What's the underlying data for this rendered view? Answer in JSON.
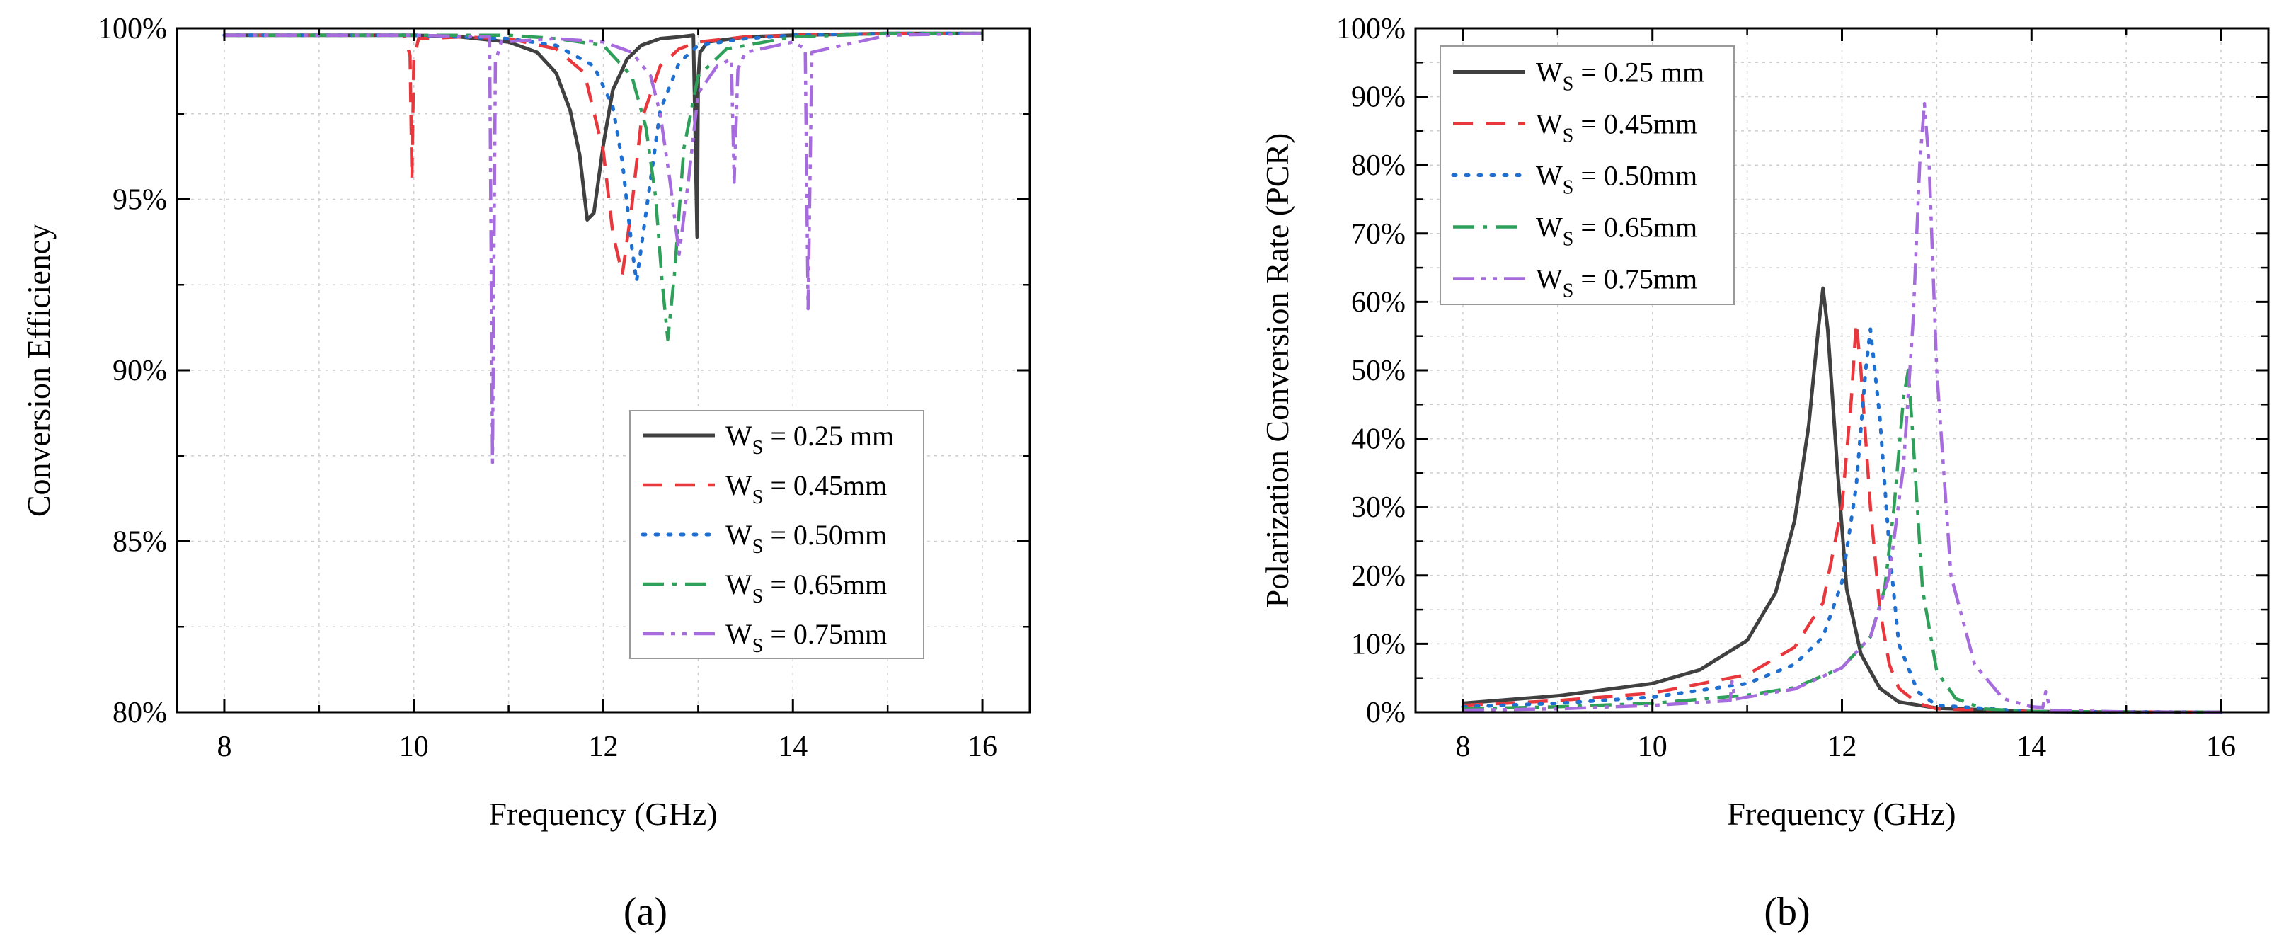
{
  "chart_data": [
    {
      "panel": "(a)",
      "type": "line",
      "xlabel": "Frequency (GHz)",
      "ylabel": "Conversion Efficiency",
      "xlim": [
        7.5,
        16.5
      ],
      "ylim": [
        80,
        100
      ],
      "xticks": [
        8,
        10,
        12,
        14,
        16
      ],
      "yticks": [
        80,
        85,
        90,
        95,
        100
      ],
      "ytick_labels": [
        "80%",
        "85%",
        "90%",
        "95%",
        "100%"
      ],
      "grid": true,
      "legend_position": "lower-right",
      "series": [
        {
          "name": "0.25 mm",
          "color": "#404040",
          "dash": "solid",
          "x": [
            8,
            9,
            10,
            10.5,
            11,
            11.3,
            11.5,
            11.65,
            11.75,
            11.83,
            11.9,
            12.0,
            12.1,
            12.25,
            12.4,
            12.6,
            12.8,
            12.95,
            12.99,
            13.0,
            13.02,
            13.1,
            13.5,
            14,
            15,
            16
          ],
          "y": [
            99.8,
            99.8,
            99.8,
            99.75,
            99.6,
            99.3,
            98.7,
            97.6,
            96.3,
            94.4,
            94.6,
            96.6,
            98.2,
            99.1,
            99.5,
            99.7,
            99.75,
            99.8,
            93.9,
            98.5,
            99.3,
            99.6,
            99.75,
            99.8,
            99.85,
            99.85
          ]
        },
        {
          "name": "0.45mm",
          "color": "#e8383d",
          "dash": "28,18",
          "x": [
            8,
            9,
            9.9,
            9.96,
            9.98,
            10.0,
            10.05,
            10.5,
            11,
            11.5,
            11.8,
            12.0,
            12.1,
            12.2,
            12.3,
            12.4,
            12.6,
            12.8,
            13,
            13.5,
            14,
            15,
            16
          ],
          "y": [
            99.8,
            99.8,
            99.8,
            99.2,
            95.6,
            99.1,
            99.7,
            99.75,
            99.7,
            99.4,
            98.7,
            96.4,
            94.0,
            92.8,
            94.8,
            97.3,
            98.9,
            99.4,
            99.6,
            99.75,
            99.8,
            99.85,
            99.85
          ]
        },
        {
          "name": "0.50mm",
          "color": "#1f6fd1",
          "dash": "4,14",
          "x": [
            8,
            9,
            10,
            11,
            11.5,
            11.9,
            12.1,
            12.2,
            12.3,
            12.35,
            12.45,
            12.6,
            12.8,
            13,
            13.5,
            14,
            15,
            16
          ],
          "y": [
            99.8,
            99.8,
            99.8,
            99.7,
            99.5,
            98.9,
            97.7,
            96.1,
            93.6,
            92.6,
            94.6,
            97.6,
            99.0,
            99.5,
            99.7,
            99.8,
            99.85,
            99.85
          ]
        },
        {
          "name": "0.65mm",
          "color": "#2ea05a",
          "dash": "30,12,6,12",
          "x": [
            8,
            9,
            10,
            11,
            11.5,
            12,
            12.3,
            12.45,
            12.55,
            12.62,
            12.68,
            12.75,
            12.85,
            13,
            13.3,
            14,
            15,
            16
          ],
          "y": [
            99.8,
            99.8,
            99.8,
            99.8,
            99.7,
            99.5,
            98.6,
            97.1,
            95.1,
            92.6,
            90.9,
            92.8,
            96.5,
            98.6,
            99.4,
            99.75,
            99.85,
            99.85
          ]
        },
        {
          "name": "0.75mm",
          "color": "#a66bdc",
          "dash": "30,10,6,10,6,10",
          "x": [
            8,
            10,
            10.8,
            10.83,
            10.86,
            10.92,
            11.5,
            12,
            12.3,
            12.5,
            12.6,
            12.7,
            12.8,
            12.9,
            13.0,
            13.2,
            13.35,
            13.38,
            13.42,
            13.5,
            14.0,
            14.13,
            14.16,
            14.2,
            15,
            16
          ],
          "y": [
            99.8,
            99.8,
            99.75,
            87.3,
            99.0,
            99.6,
            99.7,
            99.6,
            99.3,
            98.6,
            97.5,
            95.6,
            93.4,
            95.6,
            98.1,
            98.9,
            99.1,
            95.5,
            98.8,
            99.3,
            99.6,
            99.4,
            91.8,
            99.3,
            99.8,
            99.85
          ]
        }
      ]
    },
    {
      "panel": "(b)",
      "type": "line",
      "xlabel": "Frequency (GHz)",
      "ylabel": "Polarization Conversion Rate (PCR)",
      "xlim": [
        7.5,
        16.5
      ],
      "ylim": [
        0,
        100
      ],
      "xticks": [
        8,
        10,
        12,
        14,
        16
      ],
      "yticks": [
        0,
        10,
        20,
        30,
        40,
        50,
        60,
        70,
        80,
        90,
        100
      ],
      "ytick_labels": [
        "0%",
        "10%",
        "20%",
        "30%",
        "40%",
        "50%",
        "60%",
        "70%",
        "80%",
        "90%",
        "100%"
      ],
      "grid": true,
      "legend_position": "top-left",
      "series": [
        {
          "name": "0.25 mm",
          "color": "#404040",
          "dash": "solid",
          "x": [
            8,
            9,
            10,
            10.5,
            11,
            11.3,
            11.5,
            11.65,
            11.75,
            11.8,
            11.85,
            11.95,
            12.05,
            12.2,
            12.4,
            12.6,
            13,
            14,
            15,
            16
          ],
          "y": [
            1.3,
            2.4,
            4.2,
            6.2,
            10.5,
            17.5,
            28.0,
            42.0,
            56.0,
            62.0,
            56.0,
            36.0,
            18.0,
            8.5,
            3.5,
            1.5,
            0.6,
            0.1,
            0,
            0
          ]
        },
        {
          "name": "0.45mm",
          "color": "#e8383d",
          "dash": "28,18",
          "x": [
            8,
            9,
            10,
            11,
            11.5,
            11.8,
            12.0,
            12.1,
            12.15,
            12.2,
            12.3,
            12.4,
            12.5,
            12.6,
            12.8,
            13,
            14,
            16
          ],
          "y": [
            1.0,
            1.7,
            2.8,
            5.5,
            9.5,
            16.0,
            30.0,
            46.0,
            57.0,
            50.0,
            30.0,
            15.0,
            7.0,
            3.5,
            1.3,
            0.5,
            0.1,
            0
          ]
        },
        {
          "name": "0.50mm",
          "color": "#1f6fd1",
          "dash": "4,14",
          "x": [
            8,
            9,
            10,
            11,
            11.5,
            11.8,
            12.0,
            12.15,
            12.25,
            12.3,
            12.4,
            12.5,
            12.6,
            12.8,
            13,
            14,
            16
          ],
          "y": [
            0.8,
            1.3,
            2.2,
            4.2,
            7.0,
            11.0,
            19.0,
            33.0,
            50.0,
            56.0,
            43.0,
            24.0,
            10.0,
            3.0,
            1.0,
            0.1,
            0
          ]
        },
        {
          "name": "0.65mm",
          "color": "#2ea05a",
          "dash": "30,12,6,12",
          "x": [
            8,
            9,
            10,
            11,
            11.5,
            12,
            12.3,
            12.45,
            12.55,
            12.65,
            12.7,
            12.75,
            12.85,
            13.0,
            13.2,
            13.5,
            14,
            16
          ],
          "y": [
            0.5,
            0.8,
            1.3,
            2.5,
            3.6,
            6.5,
            11.0,
            18.0,
            30.0,
            46.0,
            50.0,
            40.0,
            18.0,
            6.0,
            2.0,
            0.5,
            0.1,
            0
          ]
        },
        {
          "name": "0.75mm",
          "color": "#a66bdc",
          "dash": "30,10,6,10,6,10",
          "x": [
            8,
            9,
            10,
            10.82,
            10.84,
            10.87,
            11.5,
            12,
            12.3,
            12.5,
            12.65,
            12.75,
            12.82,
            12.87,
            12.92,
            13.0,
            13.15,
            13.4,
            13.7,
            14.0,
            14.12,
            14.15,
            14.2,
            15,
            16
          ],
          "y": [
            0.3,
            0.5,
            1.0,
            1.7,
            4.5,
            1.9,
            3.4,
            6.5,
            11.0,
            20.0,
            36.0,
            57.0,
            80.0,
            89.0,
            80.0,
            50.0,
            20.0,
            7.0,
            2.0,
            0.8,
            0.7,
            3.0,
            0.3,
            0.05,
            0
          ]
        }
      ]
    }
  ],
  "legend": {
    "symbol": "W",
    "subscript": "S",
    "relation": " = "
  },
  "panel_labels": {
    "a": "(a)",
    "b": "(b)"
  }
}
